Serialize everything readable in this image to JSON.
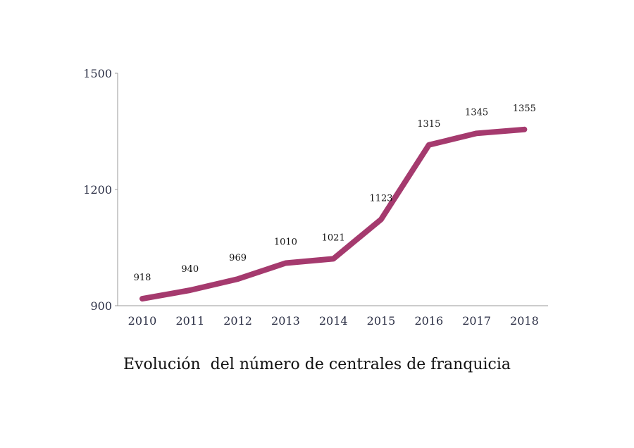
{
  "chart_data": {
    "type": "line",
    "title": "Evolución  del número de centrales de franquicia",
    "xlabel": "",
    "ylabel": "",
    "categories": [
      "2010",
      "2011",
      "2012",
      "2013",
      "2014",
      "2015",
      "2016",
      "2017",
      "2018"
    ],
    "series": [
      {
        "values": [
          918,
          940,
          969,
          1010,
          1021,
          1123,
          1315,
          1345,
          1355
        ]
      }
    ],
    "data_labels": [
      "918",
      "940",
      "969",
      "1010",
      "1021",
      "1123",
      "1315",
      "1345",
      "1355"
    ],
    "ylim": [
      900,
      1500
    ],
    "yticks": [
      900,
      1200,
      1500
    ],
    "ytick_labels": [
      "900",
      "1200",
      "1500"
    ],
    "grid": false,
    "legend": "none",
    "line_color": "#a53a6e",
    "axis_color": "#9a9a9a",
    "tick_label_color": "#2b2f45"
  }
}
